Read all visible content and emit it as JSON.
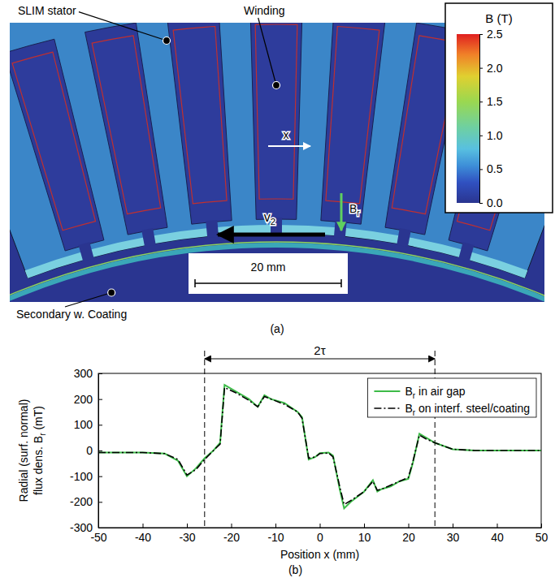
{
  "diagram": {
    "panel_label": "(a)",
    "labels": {
      "stator": "SLIM stator",
      "winding": "Winding",
      "secondary": "Secondary w. Coating",
      "x": "x",
      "velocity": "v2",
      "flux": "Br",
      "scale_bar": "20 mm"
    },
    "colorbar": {
      "title": "B (T)",
      "range": [
        0,
        2.5
      ],
      "ticks": [
        {
          "value": 0,
          "label": "0.0"
        },
        0.5,
        {
          "value": 1,
          "label": "1.0"
        },
        1.5,
        {
          "value": 2,
          "label": "2.0"
        },
        2.5
      ]
    }
  },
  "chart_data": {
    "type": "line",
    "panel_label": "(b)",
    "x_label": "Position x (mm)",
    "y_label": "Radial (surf. normal) flux dens. Br (mT)",
    "x": [
      -50,
      -40,
      -35,
      -32,
      -30,
      -28,
      -26,
      -24,
      -22.5,
      -21.5,
      -19,
      -16,
      -14,
      -12.5,
      -11,
      -8,
      -5,
      -4,
      -2.5,
      -1,
      0,
      2,
      3,
      4.5,
      5.5,
      7,
      10,
      12,
      13,
      14,
      16,
      18,
      20,
      21,
      22.5,
      24,
      26,
      30,
      35,
      40,
      50
    ],
    "series": [
      {
        "name": "Br in air gap",
        "color": "#3dbb48",
        "line_style": "solid",
        "values": [
          -8,
          -8,
          -12,
          -40,
          -100,
          -70,
          -30,
          0,
          30,
          255,
          230,
          200,
          170,
          215,
          200,
          185,
          150,
          130,
          -35,
          -25,
          -10,
          -8,
          -20,
          -150,
          -225,
          -200,
          -160,
          -115,
          -160,
          -150,
          -140,
          -120,
          -110,
          -50,
          65,
          50,
          30,
          5,
          0,
          0,
          0
        ]
      },
      {
        "name": "Br on interf. steel/coating",
        "color": "#000000",
        "line_style": "dashdot",
        "values": [
          -8,
          -8,
          -12,
          -35,
          -95,
          -75,
          -35,
          0,
          25,
          245,
          225,
          195,
          170,
          210,
          200,
          180,
          150,
          125,
          -30,
          -25,
          -12,
          -10,
          -25,
          -140,
          -210,
          -195,
          -160,
          -120,
          -155,
          -150,
          -135,
          -120,
          -105,
          -45,
          60,
          45,
          30,
          5,
          0,
          0,
          0
        ]
      }
    ],
    "xlim": [
      -50,
      50
    ],
    "xticks": [
      -50,
      -40,
      -30,
      -20,
      -10,
      0,
      10,
      20,
      30,
      40,
      50
    ],
    "ylim": [
      -300,
      300
    ],
    "yticks": [
      -300,
      -200,
      -100,
      0,
      100,
      200,
      300
    ],
    "legend": "upper right",
    "grid": false,
    "annotations": [
      {
        "text": "2τ",
        "x": [
          -26,
          26
        ]
      }
    ]
  }
}
